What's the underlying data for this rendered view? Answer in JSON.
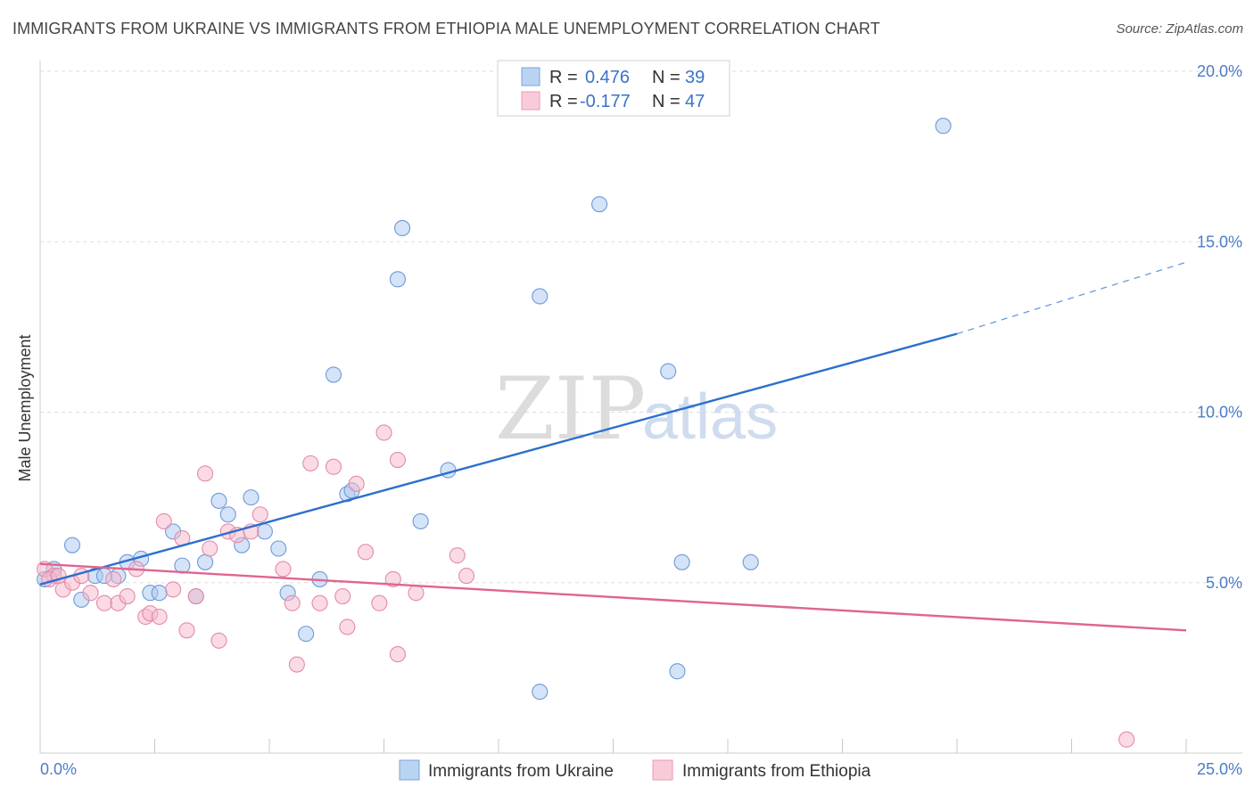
{
  "header": {
    "title": "IMMIGRANTS FROM UKRAINE VS IMMIGRANTS FROM ETHIOPIA MALE UNEMPLOYMENT CORRELATION CHART",
    "source": "Source: ZipAtlas.com"
  },
  "watermark": {
    "zip": "ZIP",
    "atlas": "atlas"
  },
  "legend": {
    "rows": [
      {
        "r_label": "R =",
        "r_value": "0.476",
        "n_label": "N =",
        "n_value": "39",
        "color": "#a9c8f0"
      },
      {
        "r_label": "R =",
        "r_value": "-0.177",
        "n_label": "N =",
        "n_value": "47",
        "color": "#f5b8cb"
      }
    ]
  },
  "chart_data": {
    "type": "scatter",
    "title": "IMMIGRANTS FROM UKRAINE VS IMMIGRANTS FROM ETHIOPIA MALE UNEMPLOYMENT CORRELATION CHART",
    "xlabel": "",
    "ylabel": "Male Unemployment",
    "xlim": [
      0,
      25
    ],
    "ylim": [
      0,
      20
    ],
    "x_tick_labels": [
      "0.0%",
      "25.0%"
    ],
    "y_ticks": [
      5,
      10,
      15,
      20
    ],
    "y_tick_labels": [
      "5.0%",
      "10.0%",
      "15.0%",
      "20.0%"
    ],
    "grid": true,
    "legend_position": "top-center",
    "series": [
      {
        "name": "Immigrants from Ukraine",
        "color": "#a9c8f0",
        "stroke": "#6e9ad6",
        "trend_color": "#2b6fce",
        "trend": {
          "x0": 0,
          "y0": 4.95,
          "x1": 20.0,
          "y1": 12.3,
          "dash_to_x": 25.0,
          "dash_to_y": 14.4
        },
        "points": [
          [
            0.1,
            5.1
          ],
          [
            0.3,
            5.4
          ],
          [
            0.7,
            6.1
          ],
          [
            0.9,
            4.5
          ],
          [
            1.2,
            5.2
          ],
          [
            1.7,
            5.2
          ],
          [
            1.9,
            5.6
          ],
          [
            2.2,
            5.7
          ],
          [
            2.4,
            4.7
          ],
          [
            2.6,
            4.7
          ],
          [
            2.9,
            6.5
          ],
          [
            3.1,
            5.5
          ],
          [
            3.4,
            4.6
          ],
          [
            3.6,
            5.6
          ],
          [
            3.9,
            7.4
          ],
          [
            4.1,
            7.0
          ],
          [
            4.4,
            6.1
          ],
          [
            4.6,
            7.5
          ],
          [
            4.9,
            6.5
          ],
          [
            5.2,
            6.0
          ],
          [
            5.4,
            4.7
          ],
          [
            5.8,
            3.5
          ],
          [
            6.1,
            5.1
          ],
          [
            6.4,
            11.1
          ],
          [
            6.7,
            7.6
          ],
          [
            6.8,
            7.7
          ],
          [
            7.8,
            13.9
          ],
          [
            7.9,
            15.4
          ],
          [
            8.3,
            6.8
          ],
          [
            8.9,
            8.3
          ],
          [
            10.9,
            13.4
          ],
          [
            10.9,
            1.8
          ],
          [
            12.2,
            16.1
          ],
          [
            13.7,
            11.2
          ],
          [
            13.9,
            2.4
          ],
          [
            14.0,
            5.6
          ],
          [
            15.5,
            5.6
          ],
          [
            19.7,
            18.4
          ],
          [
            1.4,
            5.2
          ]
        ]
      },
      {
        "name": "Immigrants from Ethiopia",
        "color": "#f5b8cb",
        "stroke": "#e48aa8",
        "trend_color": "#e06490",
        "trend": {
          "x0": 0,
          "y0": 5.55,
          "x1": 25.0,
          "y1": 3.6
        },
        "points": [
          [
            0.1,
            5.4
          ],
          [
            0.3,
            5.2
          ],
          [
            0.5,
            4.8
          ],
          [
            0.7,
            5.0
          ],
          [
            0.9,
            5.2
          ],
          [
            1.1,
            4.7
          ],
          [
            1.4,
            4.4
          ],
          [
            1.6,
            5.1
          ],
          [
            1.7,
            4.4
          ],
          [
            1.9,
            4.6
          ],
          [
            2.1,
            5.4
          ],
          [
            2.3,
            4.0
          ],
          [
            2.4,
            4.1
          ],
          [
            2.6,
            4.0
          ],
          [
            2.7,
            6.8
          ],
          [
            2.9,
            4.8
          ],
          [
            3.1,
            6.3
          ],
          [
            3.2,
            3.6
          ],
          [
            3.4,
            4.6
          ],
          [
            3.6,
            8.2
          ],
          [
            3.7,
            6.0
          ],
          [
            3.9,
            3.3
          ],
          [
            4.1,
            6.5
          ],
          [
            4.3,
            6.4
          ],
          [
            4.6,
            6.5
          ],
          [
            4.8,
            7.0
          ],
          [
            5.3,
            5.4
          ],
          [
            5.5,
            4.4
          ],
          [
            5.6,
            2.6
          ],
          [
            5.9,
            8.5
          ],
          [
            6.1,
            4.4
          ],
          [
            6.4,
            8.4
          ],
          [
            6.6,
            4.6
          ],
          [
            6.7,
            3.7
          ],
          [
            6.9,
            7.9
          ],
          [
            7.1,
            5.9
          ],
          [
            7.4,
            4.4
          ],
          [
            7.5,
            9.4
          ],
          [
            7.7,
            5.1
          ],
          [
            7.8,
            8.6
          ],
          [
            7.8,
            2.9
          ],
          [
            8.2,
            4.7
          ],
          [
            9.1,
            5.8
          ],
          [
            9.3,
            5.2
          ],
          [
            0.2,
            5.1
          ],
          [
            0.4,
            5.2
          ],
          [
            23.7,
            0.4
          ]
        ]
      }
    ]
  }
}
